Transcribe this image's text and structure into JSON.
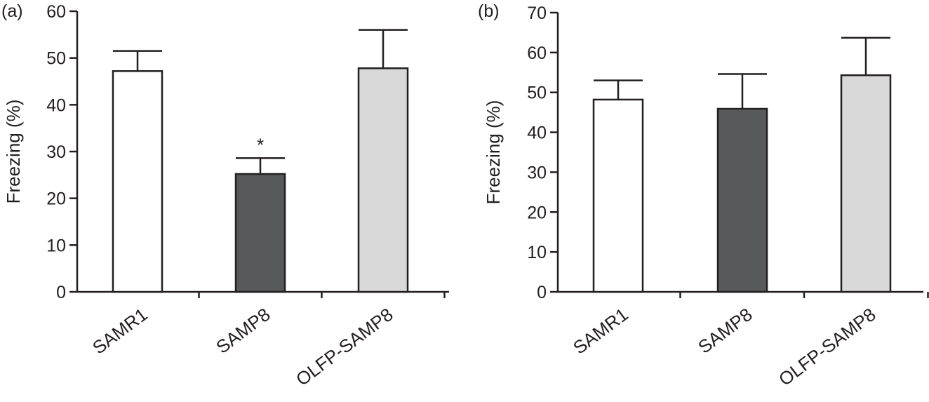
{
  "chart_data": [
    {
      "type": "bar",
      "panel_label": "(a)",
      "ylabel": "Freezing (%)",
      "xlabel": "",
      "ylim": [
        0,
        60
      ],
      "yticks": [
        0,
        10,
        20,
        30,
        40,
        50,
        60
      ],
      "categories": [
        "SAMR1",
        "SAMP8",
        "OLFP-SAMP8"
      ],
      "values": [
        47.2,
        25.2,
        47.8
      ],
      "errors": [
        4.3,
        3.4,
        8.2
      ],
      "colors": [
        "#ffffff",
        "#58595b",
        "#d9d9d9"
      ],
      "annotations": [
        "",
        "*",
        ""
      ]
    },
    {
      "type": "bar",
      "panel_label": "(b)",
      "ylabel": "Freezing (%)",
      "xlabel": "",
      "ylim": [
        0,
        70
      ],
      "yticks": [
        0,
        10,
        20,
        30,
        40,
        50,
        60,
        70
      ],
      "categories": [
        "SAMR1",
        "SAMP8",
        "OLFP-SAMP8"
      ],
      "values": [
        48.2,
        45.9,
        54.3
      ],
      "errors": [
        4.8,
        8.7,
        9.4
      ],
      "colors": [
        "#ffffff",
        "#58595b",
        "#d9d9d9"
      ],
      "annotations": [
        "",
        "",
        ""
      ]
    }
  ]
}
